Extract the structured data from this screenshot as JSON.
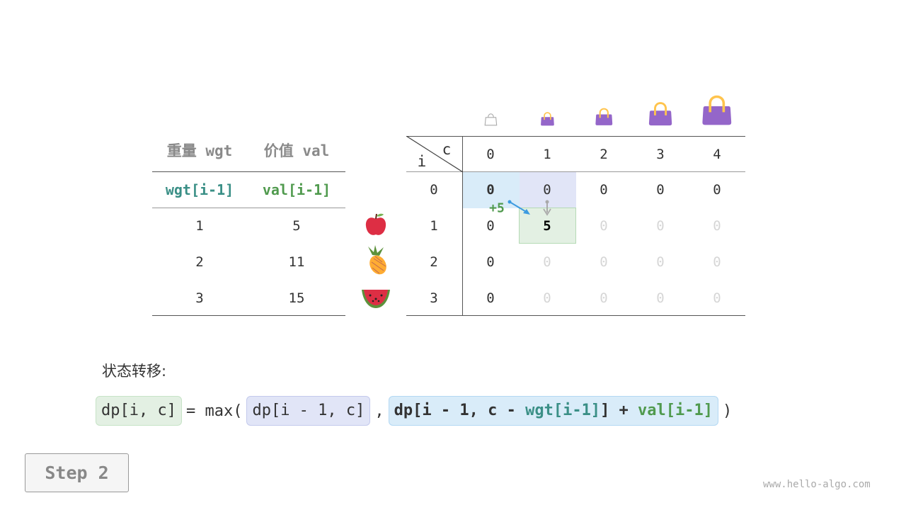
{
  "items_table": {
    "headers": [
      "重量 wgt",
      "价值 val"
    ],
    "subheaders": [
      "wgt[i-1]",
      "val[i-1]"
    ],
    "rows": [
      {
        "wgt": "1",
        "val": "5",
        "icon": "apple-icon"
      },
      {
        "wgt": "2",
        "val": "11",
        "icon": "pineapple-icon"
      },
      {
        "wgt": "3",
        "val": "15",
        "icon": "watermelon-icon"
      }
    ]
  },
  "dp_table": {
    "corner_row_label": "i",
    "corner_col_label": "c",
    "col_headers": [
      "0",
      "1",
      "2",
      "3",
      "4"
    ],
    "col_icons": [
      "empty-bag-icon",
      "bag-icon",
      "bag-icon",
      "bag-icon",
      "bag-icon"
    ],
    "row_headers": [
      "0",
      "1",
      "2",
      "3"
    ],
    "cells": [
      [
        "0",
        "0",
        "0",
        "0",
        "0"
      ],
      [
        "0",
        "5",
        "0",
        "0",
        "0"
      ],
      [
        "0",
        "0",
        "0",
        "0",
        "0"
      ],
      [
        "0",
        "0",
        "0",
        "0",
        "0"
      ]
    ],
    "filled": [
      [
        true,
        true,
        true,
        true,
        true
      ],
      [
        true,
        true,
        false,
        false,
        false
      ],
      [
        true,
        false,
        false,
        false,
        false
      ],
      [
        true,
        false,
        false,
        false,
        false
      ]
    ],
    "plus_label": "+5"
  },
  "transition": {
    "title": "状态转移:",
    "lhs": "dp[i, c]",
    "eq": "= max(",
    "opt1": "dp[i - 1, c]",
    "comma": ",",
    "opt2_a": "dp[i - 1, c - ",
    "opt2_wgt": "wgt[i-1]",
    "opt2_b": "] + ",
    "opt2_val": "val[i-1]",
    "close": ")"
  },
  "step_label": "Step 2",
  "watermark": "www.hello-algo.com",
  "colors": {
    "teal": "#3a8f86",
    "green": "#509a4e",
    "blue_cell": "#d9ecf9",
    "lavender_cell": "#e1e5f7",
    "green_cell": "#e3f0e3",
    "bag": "#9466c9"
  }
}
